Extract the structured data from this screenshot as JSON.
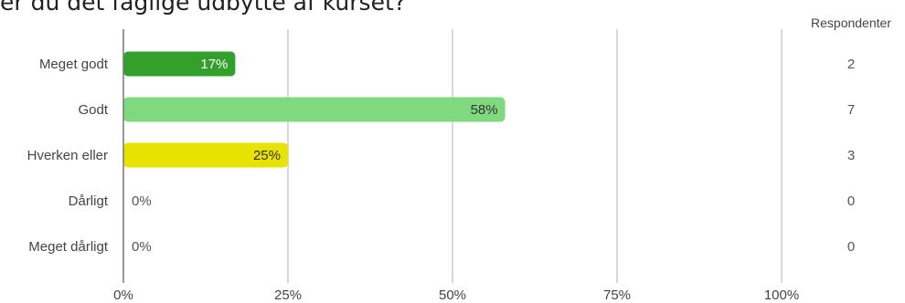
{
  "title": "er du det faglige udbytte af kurset?",
  "chart_data": {
    "type": "bar",
    "orientation": "horizontal",
    "categories": [
      "Meget godt",
      "Godt",
      "Hverken eller",
      "Dårligt",
      "Meget dårligt"
    ],
    "values": [
      17,
      58,
      25,
      0,
      0
    ],
    "value_labels": [
      "17%",
      "58%",
      "25%",
      "0%",
      "0%"
    ],
    "colors": [
      "#33a02c",
      "#7fd97f",
      "#e8e200",
      "#cccccc",
      "#cccccc"
    ],
    "label_colors": [
      "#ffffff",
      "#333333",
      "#333333",
      "#555555",
      "#555555"
    ],
    "xlim": [
      0,
      100
    ],
    "x_ticks": [
      0,
      25,
      50,
      75,
      100
    ],
    "x_tick_labels": [
      "0%",
      "25%",
      "50%",
      "75%",
      "100%"
    ],
    "grid": true,
    "counts_header": "Respondenter",
    "counts": [
      "2",
      "7",
      "3",
      "0",
      "0"
    ]
  }
}
